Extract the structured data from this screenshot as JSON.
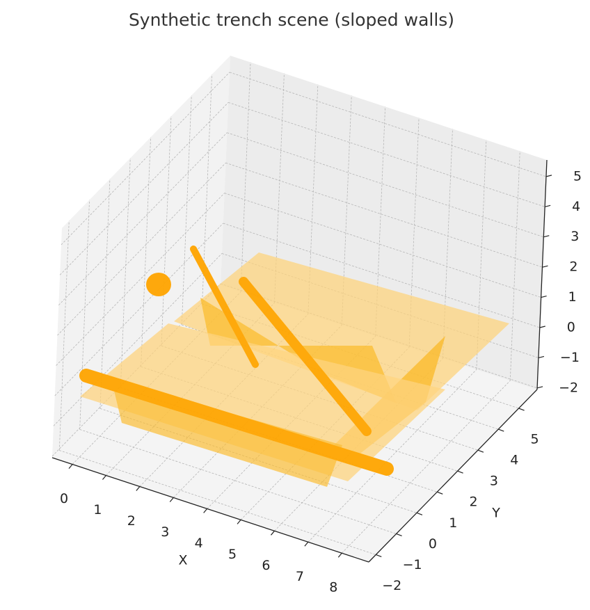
{
  "chart_data": {
    "type": "surface3d",
    "title": "Synthetic trench scene (sloped walls)",
    "xlabel": "X",
    "ylabel": "Y",
    "xlim": [
      -0.6,
      8.8
    ],
    "ylim": [
      -2.35,
      5.9
    ],
    "zlim": [
      -2.05,
      5.55
    ],
    "xticks": [
      0,
      1,
      2,
      3,
      4,
      5,
      6,
      7,
      8
    ],
    "yticks": [
      {
        "value": -2,
        "label": "−2"
      },
      {
        "value": -1,
        "label": "−1"
      },
      0,
      1,
      2,
      3,
      4,
      5
    ],
    "zticks": [
      {
        "value": -2,
        "label": "−2"
      },
      {
        "value": -1,
        "label": "−1"
      },
      0,
      1,
      2,
      3,
      4,
      5
    ],
    "grid": true,
    "color": "#ffa500"
  }
}
